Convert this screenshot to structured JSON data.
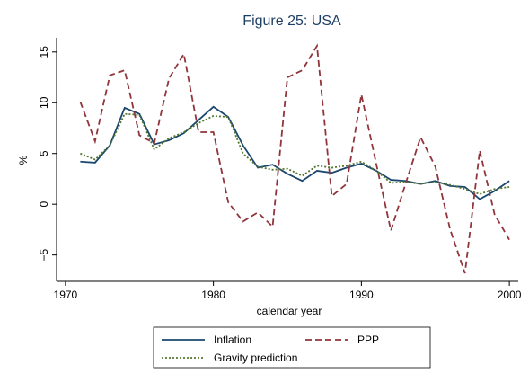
{
  "chart_data": {
    "type": "line",
    "title": "Figure 25: USA",
    "x_label": "calendar year",
    "y_label": "%",
    "x": [
      1971,
      1972,
      1973,
      1974,
      1975,
      1976,
      1977,
      1978,
      1979,
      1980,
      1981,
      1982,
      1983,
      1984,
      1985,
      1986,
      1987,
      1988,
      1989,
      1990,
      1991,
      1992,
      1993,
      1994,
      1995,
      1996,
      1997,
      1998,
      1999,
      2000
    ],
    "series": [
      {
        "name": "Inflation",
        "color": "#1a476f",
        "dash": "solid",
        "values": [
          4.2,
          4.1,
          5.8,
          9.5,
          8.9,
          5.9,
          6.3,
          7.0,
          8.3,
          9.6,
          8.6,
          5.8,
          3.6,
          3.9,
          3.0,
          2.3,
          3.3,
          3.1,
          3.6,
          4.0,
          3.3,
          2.4,
          2.3,
          2.0,
          2.3,
          1.8,
          1.7,
          0.5,
          1.3,
          2.3
        ]
      },
      {
        "name": "PPP",
        "color": "#90353b",
        "dash": "dashed",
        "values": [
          10.1,
          6.2,
          12.7,
          13.2,
          6.8,
          6.0,
          12.4,
          14.8,
          7.1,
          7.1,
          0.2,
          -1.7,
          -0.8,
          -2.2,
          12.5,
          13.2,
          15.6,
          0.8,
          2.0,
          10.8,
          4.0,
          -2.6,
          2.1,
          6.6,
          3.7,
          -2.5,
          -6.8,
          5.3,
          -1.0,
          -3.5
        ]
      },
      {
        "name": "Gravity prediction",
        "color": "#55752f",
        "dash": "dotted",
        "values": [
          5.0,
          4.4,
          5.8,
          8.9,
          8.8,
          5.4,
          6.5,
          7.1,
          8.0,
          8.7,
          8.6,
          5.0,
          3.7,
          3.4,
          3.5,
          2.8,
          3.8,
          3.6,
          3.8,
          4.2,
          3.3,
          2.1,
          2.2,
          2.0,
          2.2,
          1.9,
          1.5,
          1.0,
          1.5,
          1.7
        ]
      }
    ],
    "xlim": [
      1969.4,
      2000.6
    ],
    "ylim": [
      -7.6,
      16.4
    ],
    "xticks": [
      1970,
      1980,
      1990,
      2000
    ],
    "yticks": [
      {
        "value": -5,
        "label": "−5"
      },
      0,
      5,
      10,
      15
    ]
  }
}
